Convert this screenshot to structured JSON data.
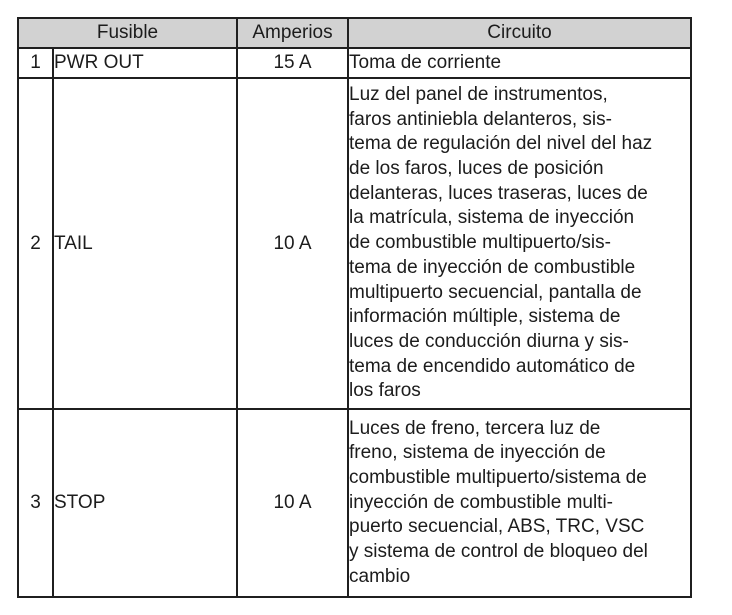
{
  "table": {
    "headers": {
      "fusible": "Fusible",
      "amperios": "Amperios",
      "circuito": "Circuito"
    },
    "rows": [
      {
        "num": "1",
        "fusible": "PWR OUT",
        "amperios": "15 A",
        "circuito": "Toma de corriente"
      },
      {
        "num": "2",
        "fusible": "TAIL",
        "amperios": "10 A",
        "circuito": "Luz del panel de instrumentos,\nfaros antiniebla delanteros, sis-\ntema de regulación del nivel del haz\nde los faros, luces de posición\ndelanteras, luces traseras, luces de\nla matrícula, sistema de inyección\nde combustible multipuerto/sis-\ntema de inyección de combustible\nmultipuerto secuencial, pantalla de\ninformación múltiple, sistema de\nluces de conducción diurna y sis-\ntema de encendido automático de\nlos faros"
      },
      {
        "num": "3",
        "fusible": "STOP",
        "amperios": "10 A",
        "circuito": "Luces de freno, tercera luz de\nfreno, sistema de inyección de\ncombustible multipuerto/sistema de\ninyección de combustible multi-\npuerto secuencial, ABS, TRC, VSC\ny sistema de control de bloqueo del\ncambio"
      }
    ],
    "colors": {
      "header_bg": "#d2d2d2",
      "border": "#1f1f1f",
      "text": "#1c1c1c"
    }
  }
}
